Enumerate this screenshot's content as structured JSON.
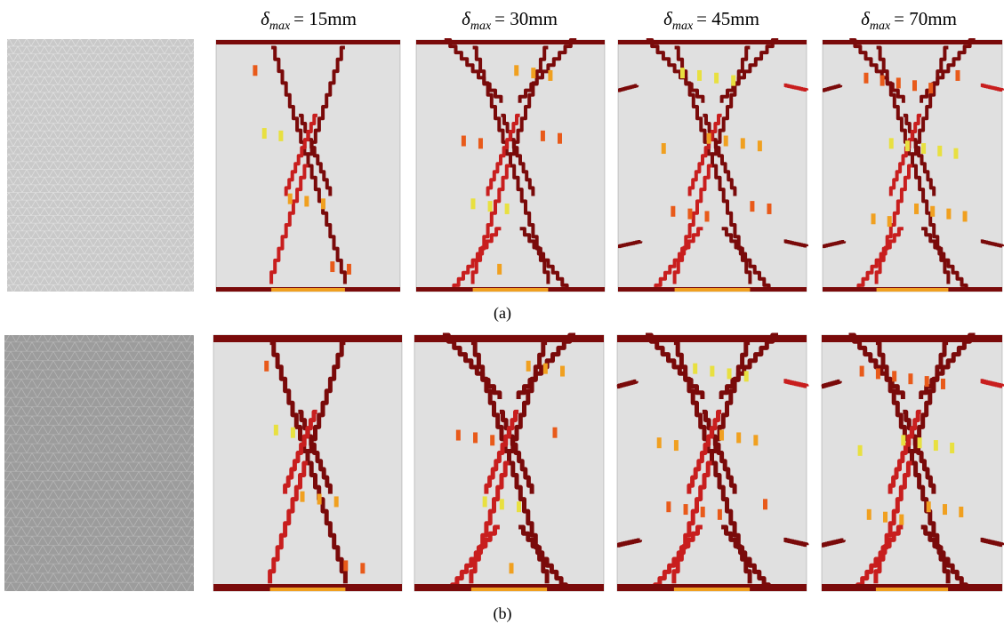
{
  "columns": [
    {
      "symbol": "δ",
      "subscript": "max",
      "equals": "= 15mm"
    },
    {
      "symbol": "δ",
      "subscript": "max",
      "equals": "= 30mm"
    },
    {
      "symbol": "δ",
      "subscript": "max",
      "equals": "= 45mm"
    },
    {
      "symbol": "δ",
      "subscript": "max",
      "equals": "= 70mm"
    }
  ],
  "rows": [
    {
      "label": "(a)"
    },
    {
      "label": "(b)"
    }
  ]
}
